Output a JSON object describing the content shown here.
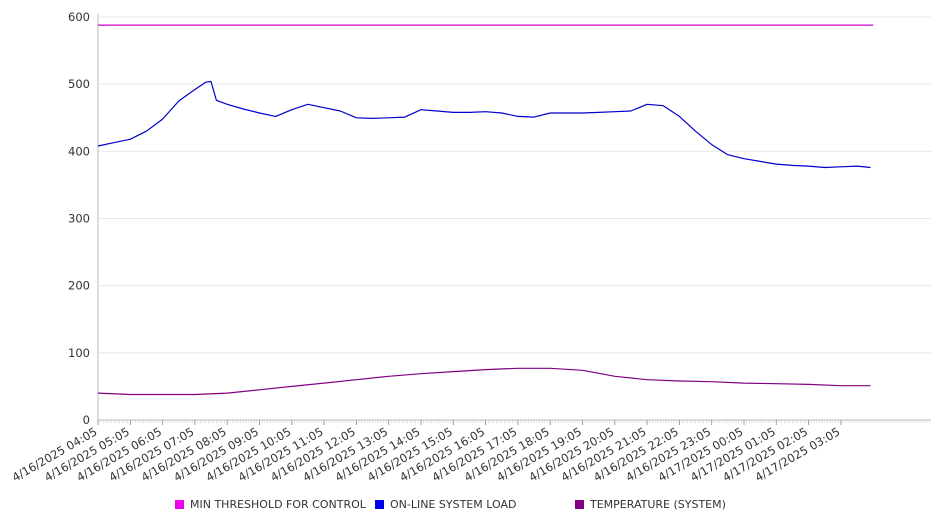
{
  "chart_data": {
    "type": "line",
    "ylim": [
      0,
      600
    ],
    "yticks": [
      0,
      100,
      200,
      300,
      400,
      500,
      600
    ],
    "grid": true,
    "legend_position": "bottom",
    "x_labels": [
      "4/16/2025 04:05",
      "4/16/2025 05:05",
      "4/16/2025 06:05",
      "4/16/2025 07:05",
      "4/16/2025 08:05",
      "4/16/2025 09:05",
      "4/16/2025 10:05",
      "4/16/2025 11:05",
      "4/16/2025 12:05",
      "4/16/2025 13:05",
      "4/16/2025 14:05",
      "4/16/2025 15:05",
      "4/16/2025 16:05",
      "4/16/2025 17:05",
      "4/16/2025 18:05",
      "4/16/2025 19:05",
      "4/16/2025 20:05",
      "4/16/2025 21:05",
      "4/16/2025 22:05",
      "4/16/2025 23:05",
      "4/17/2025 00:05",
      "4/17/2025 01:05",
      "4/17/2025 02:05",
      "4/17/2025 03:05"
    ],
    "series": [
      {
        "name": "MIN THRESHOLD FOR CONTROL",
        "color": "#cc00cc",
        "x": [
          "4/16/2025 04:05",
          "4/17/2025 04:05"
        ],
        "values": [
          588,
          588
        ]
      },
      {
        "name": "ON-LINE SYSTEM LOAD",
        "color": "#0000cc",
        "x": [
          "4/16/2025 04:05",
          "4/16/2025 04:35",
          "4/16/2025 05:05",
          "4/16/2025 05:35",
          "4/16/2025 06:05",
          "4/16/2025 06:35",
          "4/16/2025 07:05",
          "4/16/2025 07:25",
          "4/16/2025 07:35",
          "4/16/2025 07:45",
          "4/16/2025 08:05",
          "4/16/2025 08:35",
          "4/16/2025 09:05",
          "4/16/2025 09:35",
          "4/16/2025 10:05",
          "4/16/2025 10:35",
          "4/16/2025 11:05",
          "4/16/2025 11:35",
          "4/16/2025 12:05",
          "4/16/2025 12:35",
          "4/16/2025 13:05",
          "4/16/2025 13:35",
          "4/16/2025 14:05",
          "4/16/2025 14:35",
          "4/16/2025 15:05",
          "4/16/2025 15:35",
          "4/16/2025 16:05",
          "4/16/2025 16:35",
          "4/16/2025 17:05",
          "4/16/2025 17:35",
          "4/16/2025 18:05",
          "4/16/2025 18:35",
          "4/16/2025 19:05",
          "4/16/2025 19:35",
          "4/16/2025 20:05",
          "4/16/2025 20:35",
          "4/16/2025 21:05",
          "4/16/2025 21:35",
          "4/16/2025 22:05",
          "4/16/2025 22:35",
          "4/16/2025 23:05",
          "4/16/2025 23:35",
          "4/17/2025 00:05",
          "4/17/2025 00:35",
          "4/17/2025 01:05",
          "4/17/2025 01:35",
          "4/17/2025 02:05",
          "4/17/2025 02:35",
          "4/17/2025 03:05",
          "4/17/2025 03:35",
          "4/17/2025 04:00"
        ],
        "values": [
          408,
          413,
          418,
          430,
          448,
          475,
          492,
          503,
          504,
          476,
          470,
          463,
          457,
          452,
          462,
          470,
          465,
          460,
          450,
          449,
          450,
          451,
          462,
          460,
          458,
          458,
          459,
          457,
          452,
          451,
          457,
          457,
          457,
          458,
          459,
          460,
          470,
          468,
          452,
          430,
          410,
          395,
          389,
          385,
          381,
          379,
          378,
          376,
          377,
          378,
          376
        ]
      },
      {
        "name": "TEMPERATURE (SYSTEM)",
        "color": "#800080",
        "x": [
          "4/16/2025 04:05",
          "4/16/2025 05:05",
          "4/16/2025 06:05",
          "4/16/2025 07:05",
          "4/16/2025 08:05",
          "4/16/2025 09:05",
          "4/16/2025 10:05",
          "4/16/2025 11:05",
          "4/16/2025 12:05",
          "4/16/2025 13:05",
          "4/16/2025 14:05",
          "4/16/2025 15:05",
          "4/16/2025 16:05",
          "4/16/2025 17:05",
          "4/16/2025 18:05",
          "4/16/2025 19:05",
          "4/16/2025 20:05",
          "4/16/2025 21:05",
          "4/16/2025 22:05",
          "4/16/2025 23:05",
          "4/17/2025 00:05",
          "4/17/2025 01:05",
          "4/17/2025 02:05",
          "4/17/2025 03:05",
          "4/17/2025 04:00"
        ],
        "values": [
          40,
          38,
          38,
          38,
          40,
          45,
          50,
          55,
          60,
          65,
          69,
          72,
          75,
          77,
          77,
          74,
          65,
          60,
          58,
          57,
          55,
          54,
          53,
          51,
          51
        ]
      }
    ]
  }
}
